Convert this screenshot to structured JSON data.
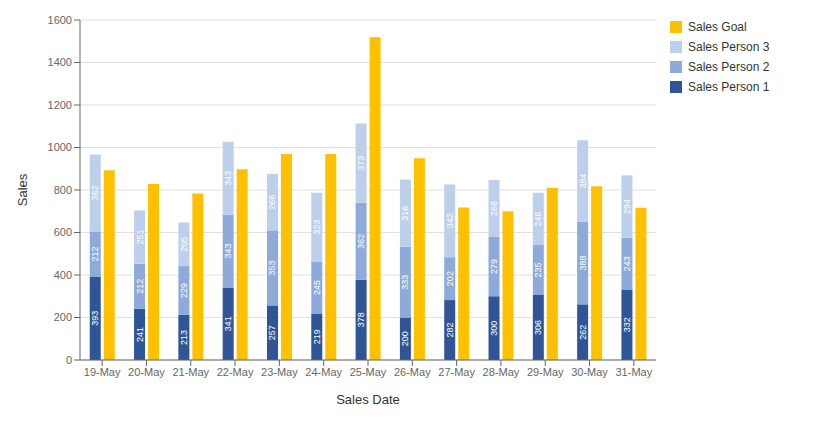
{
  "chart_data": {
    "type": "bar",
    "xlabel": "Sales Date",
    "ylabel": "Sales",
    "categories": [
      "19-May",
      "20-May",
      "21-May",
      "22-May",
      "23-May",
      "24-May",
      "25-May",
      "26-May",
      "27-May",
      "28-May",
      "29-May",
      "30-May",
      "31-May"
    ],
    "series": [
      {
        "name": "Sales Goal",
        "color": "#FFC000",
        "values": [
          893,
          828,
          783,
          898,
          970,
          970,
          1519,
          950,
          718,
          700,
          811,
          818,
          717
        ]
      },
      {
        "name": "Sales Person 1",
        "color": "#2F5597",
        "stacked": true,
        "data_labels": true,
        "values": [
          393,
          241,
          213,
          341,
          257,
          219,
          378,
          200,
          282,
          300,
          306,
          262,
          332
        ]
      },
      {
        "name": "Sales Person 2",
        "color": "#8EAADB",
        "stacked": true,
        "data_labels": true,
        "values": [
          212,
          212,
          229,
          343,
          353,
          245,
          362,
          333,
          202,
          279,
          235,
          388,
          243
        ]
      },
      {
        "name": "Sales Person 3",
        "color": "#BDD0EB",
        "stacked": true,
        "data_labels": true,
        "values": [
          362,
          251,
          205,
          343,
          266,
          323,
          373,
          316,
          342,
          268,
          246,
          384,
          294
        ]
      }
    ],
    "ylim": [
      0,
      1600
    ],
    "yticks": [
      0,
      200,
      400,
      600,
      800,
      1000,
      1200,
      1400,
      1600
    ],
    "grid": true,
    "legend": "upper right"
  }
}
